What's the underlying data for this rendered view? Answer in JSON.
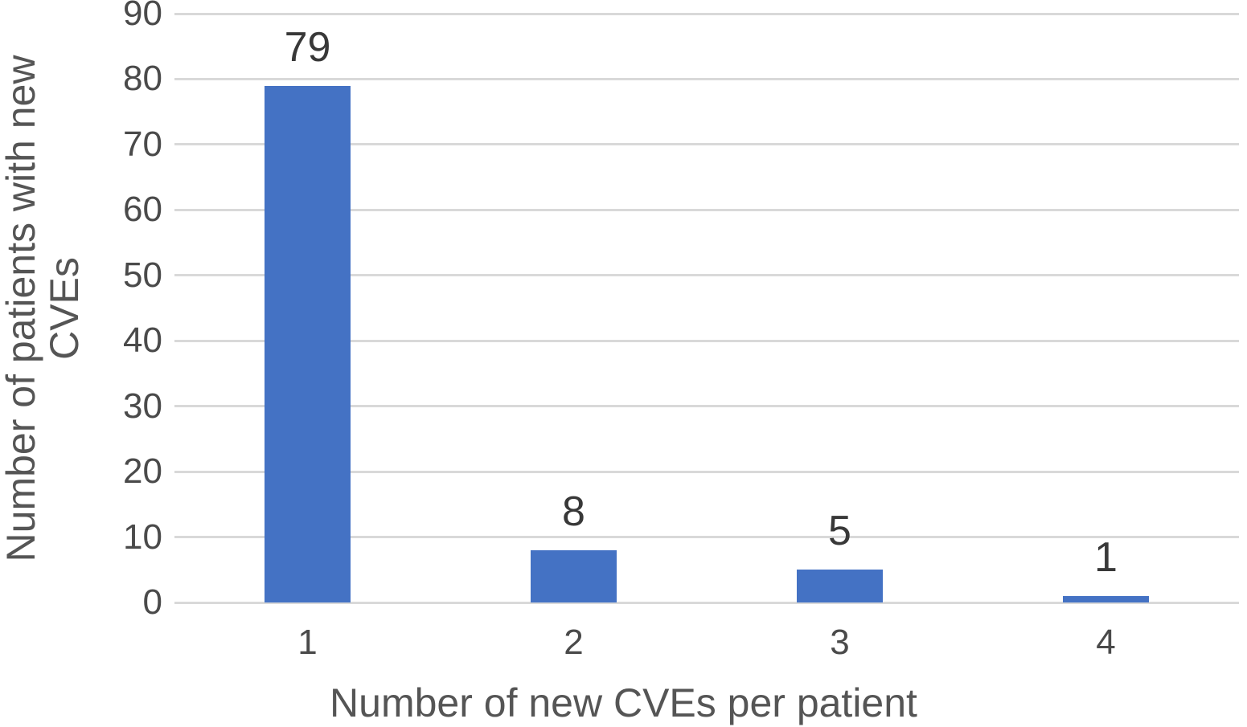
{
  "chart_data": {
    "type": "bar",
    "title": "",
    "categories": [
      "1",
      "2",
      "3",
      "4"
    ],
    "values": [
      79,
      8,
      5,
      1
    ],
    "data_labels": [
      "79",
      "8",
      "5",
      "1"
    ],
    "xlabel": "Number of new CVEs per patient",
    "ylabel": "Number of patients with new CVEs",
    "ylabel_line1": "Number of patients with new",
    "ylabel_line2": "CVEs",
    "yticks": [
      0,
      10,
      20,
      30,
      40,
      50,
      60,
      70,
      80,
      90
    ],
    "ytick_labels": [
      "0",
      "10",
      "20",
      "30",
      "40",
      "50",
      "60",
      "70",
      "80",
      "90"
    ],
    "ylim": [
      0,
      90
    ],
    "grid": "horizontal",
    "legend_position": "none",
    "colors": {
      "bar": "#4472C4",
      "gridline": "#D9D9D9",
      "tick_text": "#4A4A4A",
      "axis_title_text": "#555555",
      "data_label_text": "#383838",
      "background": "#FFFFFF"
    }
  }
}
